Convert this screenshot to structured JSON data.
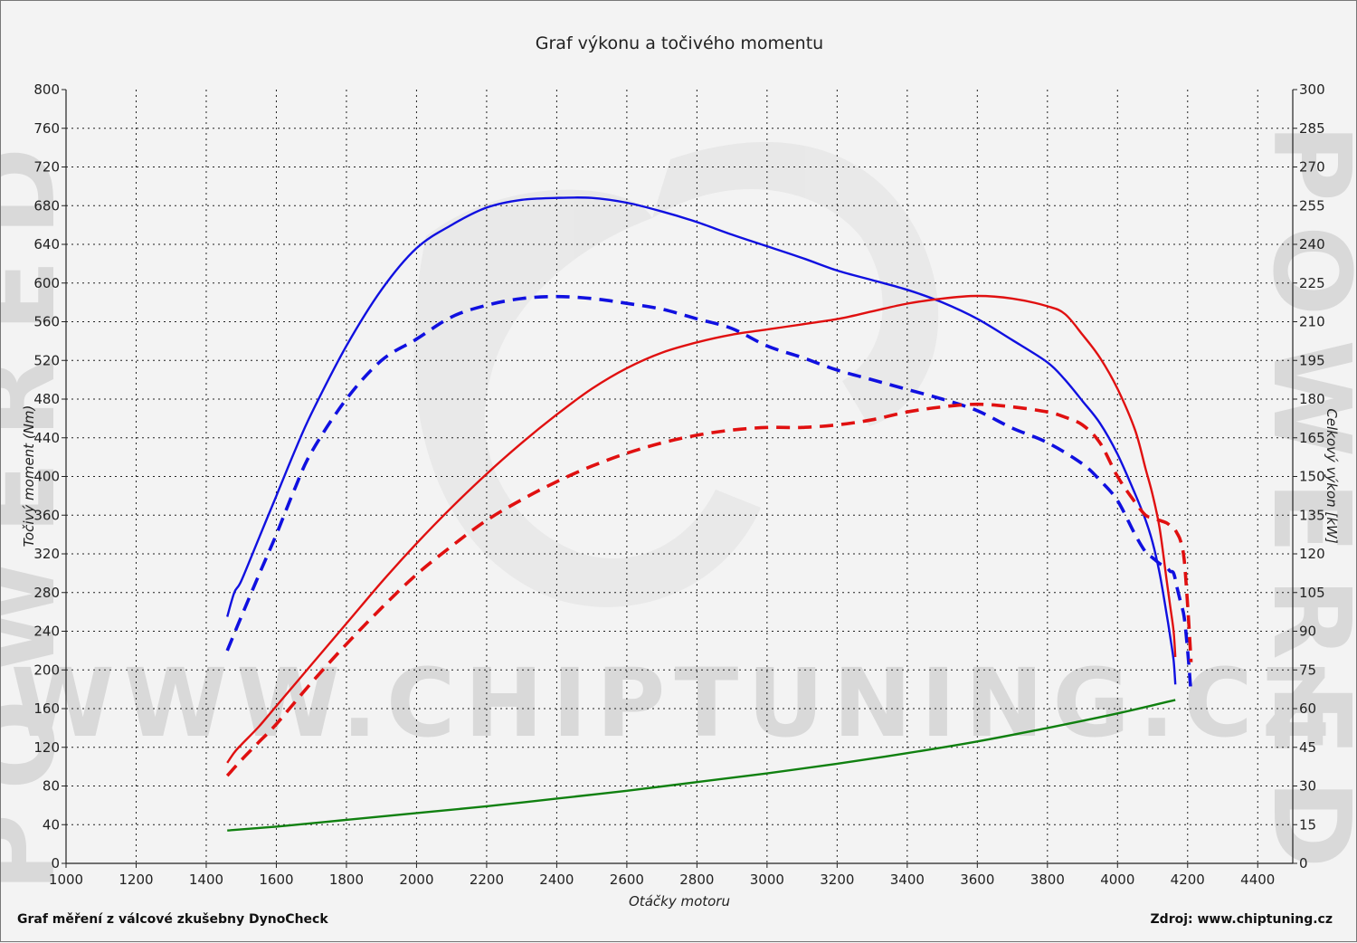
{
  "chart_data": {
    "type": "line",
    "title": "Graf výkonu a točivého momentu",
    "xlabel": "Otáčky motoru",
    "ylabel_left": "Točivý moment (Nm)",
    "ylabel_right": "Celkový výkon [kW]",
    "xlim": [
      1000,
      4500
    ],
    "ylim_left": [
      0,
      800
    ],
    "ylim_right": [
      0,
      300
    ],
    "x_ticks": [
      1000,
      1200,
      1400,
      1600,
      1800,
      2000,
      2200,
      2400,
      2600,
      2800,
      3000,
      3200,
      3400,
      3600,
      3800,
      4000,
      4200,
      4400
    ],
    "y_left_ticks": [
      0,
      40,
      80,
      120,
      160,
      200,
      240,
      280,
      320,
      360,
      400,
      440,
      480,
      520,
      560,
      600,
      640,
      680,
      720,
      760,
      800
    ],
    "y_right_ticks": [
      0,
      15,
      30,
      45,
      60,
      75,
      90,
      105,
      120,
      135,
      150,
      165,
      180,
      195,
      210,
      225,
      240,
      255,
      270,
      285,
      300
    ],
    "grid": true,
    "series": [
      {
        "color": "#1010e0",
        "dash": false,
        "axis": "left",
        "x": [
          1460,
          1480,
          1500,
          1550,
          1600,
          1650,
          1700,
          1800,
          1900,
          2000,
          2100,
          2200,
          2300,
          2400,
          2500,
          2600,
          2700,
          2800,
          2900,
          3000,
          3100,
          3200,
          3300,
          3400,
          3500,
          3600,
          3700,
          3800,
          3850,
          3900,
          3950,
          4000,
          4050,
          4080,
          4100,
          4120,
          4140,
          4150,
          4160,
          4165
        ],
        "y": [
          255,
          280,
          292,
          336,
          380,
          424,
          465,
          535,
          593,
          636,
          660,
          678,
          686,
          688,
          688,
          683,
          674,
          663,
          650,
          638,
          626,
          613,
          603,
          593,
          580,
          563,
          541,
          518,
          500,
          478,
          455,
          423,
          382,
          355,
          332,
          300,
          258,
          235,
          210,
          185
        ]
      },
      {
        "color": "#1010e0",
        "dash": true,
        "axis": "left",
        "x": [
          1460,
          1500,
          1550,
          1600,
          1650,
          1700,
          1800,
          1900,
          2000,
          2100,
          2200,
          2300,
          2400,
          2500,
          2600,
          2700,
          2800,
          2900,
          3000,
          3100,
          3200,
          3300,
          3400,
          3500,
          3600,
          3700,
          3800,
          3900,
          3950,
          4000,
          4050,
          4080,
          4100,
          4120,
          4140,
          4150,
          4160,
          4170,
          4180,
          4190,
          4200,
          4210
        ],
        "y": [
          220,
          255,
          298,
          340,
          385,
          425,
          480,
          520,
          542,
          565,
          577,
          584,
          586,
          584,
          579,
          573,
          563,
          553,
          535,
          523,
          510,
          500,
          490,
          480,
          468,
          450,
          435,
          413,
          396,
          375,
          340,
          322,
          316,
          310,
          306,
          302,
          300,
          285,
          270,
          255,
          220,
          175
        ]
      },
      {
        "color": "#e01010",
        "dash": false,
        "axis": "right",
        "x": [
          1460,
          1480,
          1500,
          1550,
          1600,
          1700,
          1800,
          1900,
          2000,
          2100,
          2200,
          2300,
          2400,
          2500,
          2600,
          2700,
          2800,
          2900,
          3000,
          3100,
          3200,
          3300,
          3400,
          3500,
          3600,
          3700,
          3800,
          3850,
          3900,
          3950,
          4000,
          4050,
          4080,
          4100,
          4120,
          4140,
          4150,
          4160,
          4165
        ],
        "y": [
          39,
          43,
          46,
          53,
          61,
          77,
          93,
          109,
          124,
          138,
          151,
          163,
          174,
          184,
          192,
          198,
          202,
          205,
          207,
          209,
          211,
          214,
          217,
          219,
          220,
          219,
          216,
          213,
          205,
          196,
          184,
          168,
          153,
          143,
          130,
          110,
          100,
          90,
          80
        ]
      },
      {
        "color": "#e01010",
        "dash": true,
        "axis": "right",
        "x": [
          1460,
          1500,
          1550,
          1600,
          1700,
          1800,
          1900,
          2000,
          2100,
          2200,
          2300,
          2400,
          2500,
          2600,
          2700,
          2800,
          2900,
          3000,
          3100,
          3200,
          3300,
          3400,
          3500,
          3600,
          3700,
          3800,
          3850,
          3900,
          3950,
          4000,
          4050,
          4080,
          4100,
          4120,
          4140,
          4150,
          4160,
          4170,
          4180,
          4190,
          4200,
          4210
        ],
        "y": [
          34,
          40,
          47,
          54,
          70,
          85,
          99,
          112,
          123,
          133,
          141,
          148,
          154,
          159,
          163,
          166,
          168,
          169,
          169,
          170,
          172,
          175,
          177,
          178,
          177,
          175,
          173,
          170,
          163,
          150,
          140,
          135,
          134,
          133,
          132,
          131,
          130,
          128,
          125,
          118,
          100,
          78
        ]
      },
      {
        "color": "#108010",
        "dash": false,
        "axis": "left",
        "x": [
          1460,
          1600,
          1800,
          2000,
          2200,
          2400,
          2600,
          2800,
          3000,
          3200,
          3400,
          3600,
          3800,
          4000,
          4165
        ],
        "y": [
          34,
          38,
          45,
          52,
          59,
          67,
          75,
          84,
          93,
          103,
          114,
          126,
          140,
          155,
          169
        ]
      }
    ],
    "footer_left": "Graf měření z válcové zkušebny DynoCheck",
    "footer_right": "Zdroj: www.chiptuning.cz"
  },
  "watermark": {
    "url_text": "WWW.CHIPTUNING.CZ",
    "side_text": "POWERED"
  }
}
